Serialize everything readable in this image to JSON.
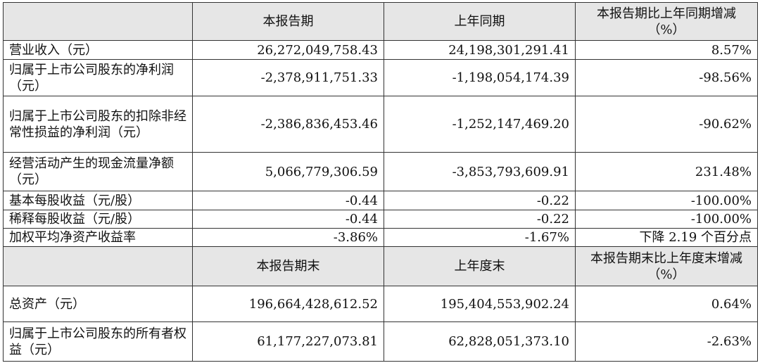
{
  "header1": [
    "",
    "本报告期",
    "上年同期",
    "本报告期比上年同期增减（%）"
  ],
  "rows1": [
    {
      "label": "营业收入（元）",
      "cur": "26,272,049,758.43",
      "prev": "24,198,301,291.41",
      "chg": "8.57%"
    },
    {
      "label": "归属于上市公司股东的净利润（元）",
      "cur": "-2,378,911,751.33",
      "prev": "-1,198,054,174.39",
      "chg": "-98.56%"
    },
    {
      "label": "归属于上市公司股东的扣除非经常性损益的净利润（元）",
      "cur": "-2,386,836,453.46",
      "prev": "-1,252,147,469.20",
      "chg": "-90.62%"
    },
    {
      "label": "经营活动产生的现金流量净额（元）",
      "cur": "5,066,779,306.59",
      "prev": "-3,853,793,609.91",
      "chg": "231.48%"
    },
    {
      "label": "基本每股收益（元/股）",
      "cur": "-0.44",
      "prev": "-0.22",
      "chg": "-100.00%"
    },
    {
      "label": "稀释每股收益（元/股）",
      "cur": "-0.44",
      "prev": "-0.22",
      "chg": "-100.00%"
    },
    {
      "label": "加权平均净资产收益率",
      "cur": "-3.86%",
      "prev": "-1.67%",
      "chg": "下降 2.19 个百分点"
    }
  ],
  "header2": [
    "",
    "本报告期末",
    "上年度末",
    "本报告期末比上年度末增减（%）"
  ],
  "rows2": [
    {
      "label": "总资产（元）",
      "cur": "196,664,428,612.52",
      "prev": "195,404,553,902.24",
      "chg": "0.64%"
    },
    {
      "label": "归属于上市公司股东的所有者权益（元）",
      "cur": "61,177,227,073.81",
      "prev": "62,828,051,373.10",
      "chg": "-2.63%"
    }
  ]
}
